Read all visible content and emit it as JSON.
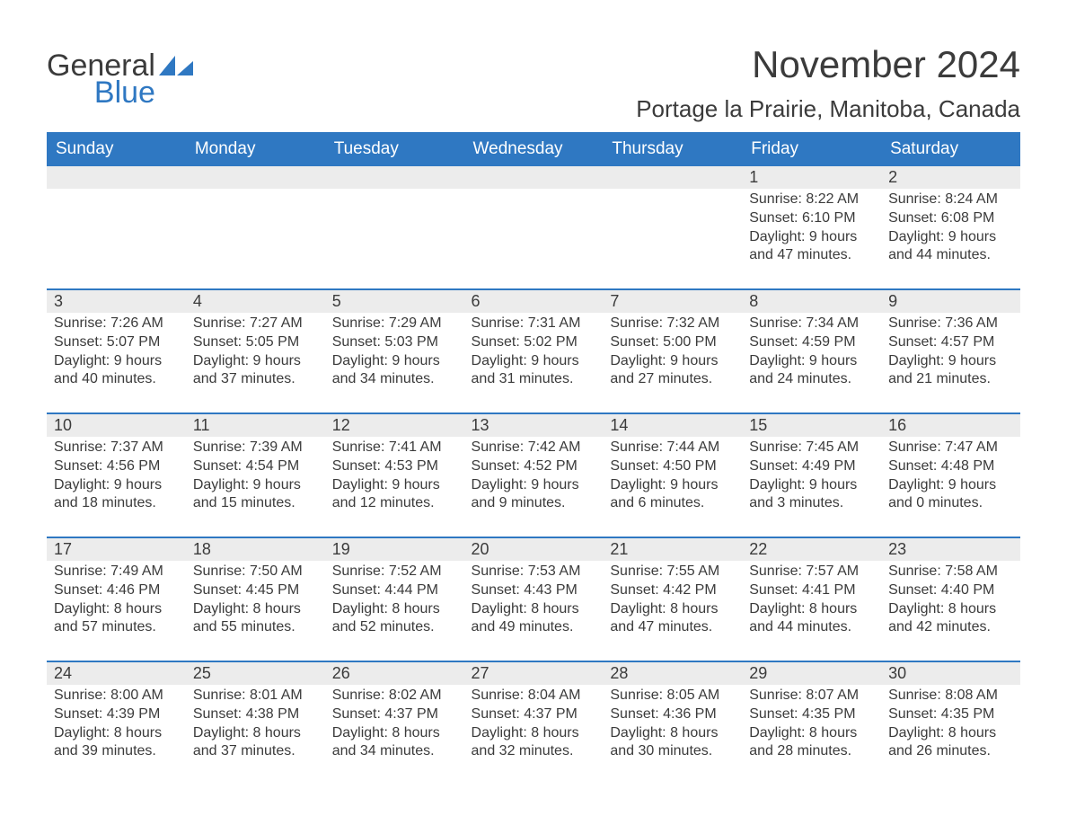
{
  "logo": {
    "word1": "General",
    "word2": "Blue",
    "sail_color": "#2f78c2"
  },
  "title": "November 2024",
  "location": "Portage la Prairie, Manitoba, Canada",
  "colors": {
    "header_bg": "#2f78c2",
    "header_fg": "#ffffff",
    "rule": "#2f78c2",
    "daybar_bg": "#ececec",
    "text": "#3b3b3b",
    "page_bg": "#ffffff"
  },
  "fonts": {
    "title_pt": 42,
    "location_pt": 26,
    "weekday_pt": 19,
    "daynum_pt": 18,
    "body_pt": 16
  },
  "weekdays": [
    "Sunday",
    "Monday",
    "Tuesday",
    "Wednesday",
    "Thursday",
    "Friday",
    "Saturday"
  ],
  "first_weekday_index": 5,
  "days": [
    {
      "n": 1,
      "sunrise": "8:22 AM",
      "sunset": "6:10 PM",
      "daylight": "9 hours and 47 minutes."
    },
    {
      "n": 2,
      "sunrise": "8:24 AM",
      "sunset": "6:08 PM",
      "daylight": "9 hours and 44 minutes."
    },
    {
      "n": 3,
      "sunrise": "7:26 AM",
      "sunset": "5:07 PM",
      "daylight": "9 hours and 40 minutes."
    },
    {
      "n": 4,
      "sunrise": "7:27 AM",
      "sunset": "5:05 PM",
      "daylight": "9 hours and 37 minutes."
    },
    {
      "n": 5,
      "sunrise": "7:29 AM",
      "sunset": "5:03 PM",
      "daylight": "9 hours and 34 minutes."
    },
    {
      "n": 6,
      "sunrise": "7:31 AM",
      "sunset": "5:02 PM",
      "daylight": "9 hours and 31 minutes."
    },
    {
      "n": 7,
      "sunrise": "7:32 AM",
      "sunset": "5:00 PM",
      "daylight": "9 hours and 27 minutes."
    },
    {
      "n": 8,
      "sunrise": "7:34 AM",
      "sunset": "4:59 PM",
      "daylight": "9 hours and 24 minutes."
    },
    {
      "n": 9,
      "sunrise": "7:36 AM",
      "sunset": "4:57 PM",
      "daylight": "9 hours and 21 minutes."
    },
    {
      "n": 10,
      "sunrise": "7:37 AM",
      "sunset": "4:56 PM",
      "daylight": "9 hours and 18 minutes."
    },
    {
      "n": 11,
      "sunrise": "7:39 AM",
      "sunset": "4:54 PM",
      "daylight": "9 hours and 15 minutes."
    },
    {
      "n": 12,
      "sunrise": "7:41 AM",
      "sunset": "4:53 PM",
      "daylight": "9 hours and 12 minutes."
    },
    {
      "n": 13,
      "sunrise": "7:42 AM",
      "sunset": "4:52 PM",
      "daylight": "9 hours and 9 minutes."
    },
    {
      "n": 14,
      "sunrise": "7:44 AM",
      "sunset": "4:50 PM",
      "daylight": "9 hours and 6 minutes."
    },
    {
      "n": 15,
      "sunrise": "7:45 AM",
      "sunset": "4:49 PM",
      "daylight": "9 hours and 3 minutes."
    },
    {
      "n": 16,
      "sunrise": "7:47 AM",
      "sunset": "4:48 PM",
      "daylight": "9 hours and 0 minutes."
    },
    {
      "n": 17,
      "sunrise": "7:49 AM",
      "sunset": "4:46 PM",
      "daylight": "8 hours and 57 minutes."
    },
    {
      "n": 18,
      "sunrise": "7:50 AM",
      "sunset": "4:45 PM",
      "daylight": "8 hours and 55 minutes."
    },
    {
      "n": 19,
      "sunrise": "7:52 AM",
      "sunset": "4:44 PM",
      "daylight": "8 hours and 52 minutes."
    },
    {
      "n": 20,
      "sunrise": "7:53 AM",
      "sunset": "4:43 PM",
      "daylight": "8 hours and 49 minutes."
    },
    {
      "n": 21,
      "sunrise": "7:55 AM",
      "sunset": "4:42 PM",
      "daylight": "8 hours and 47 minutes."
    },
    {
      "n": 22,
      "sunrise": "7:57 AM",
      "sunset": "4:41 PM",
      "daylight": "8 hours and 44 minutes."
    },
    {
      "n": 23,
      "sunrise": "7:58 AM",
      "sunset": "4:40 PM",
      "daylight": "8 hours and 42 minutes."
    },
    {
      "n": 24,
      "sunrise": "8:00 AM",
      "sunset": "4:39 PM",
      "daylight": "8 hours and 39 minutes."
    },
    {
      "n": 25,
      "sunrise": "8:01 AM",
      "sunset": "4:38 PM",
      "daylight": "8 hours and 37 minutes."
    },
    {
      "n": 26,
      "sunrise": "8:02 AM",
      "sunset": "4:37 PM",
      "daylight": "8 hours and 34 minutes."
    },
    {
      "n": 27,
      "sunrise": "8:04 AM",
      "sunset": "4:37 PM",
      "daylight": "8 hours and 32 minutes."
    },
    {
      "n": 28,
      "sunrise": "8:05 AM",
      "sunset": "4:36 PM",
      "daylight": "8 hours and 30 minutes."
    },
    {
      "n": 29,
      "sunrise": "8:07 AM",
      "sunset": "4:35 PM",
      "daylight": "8 hours and 28 minutes."
    },
    {
      "n": 30,
      "sunrise": "8:08 AM",
      "sunset": "4:35 PM",
      "daylight": "8 hours and 26 minutes."
    }
  ],
  "labels": {
    "sunrise": "Sunrise:",
    "sunset": "Sunset:",
    "daylight": "Daylight:"
  }
}
